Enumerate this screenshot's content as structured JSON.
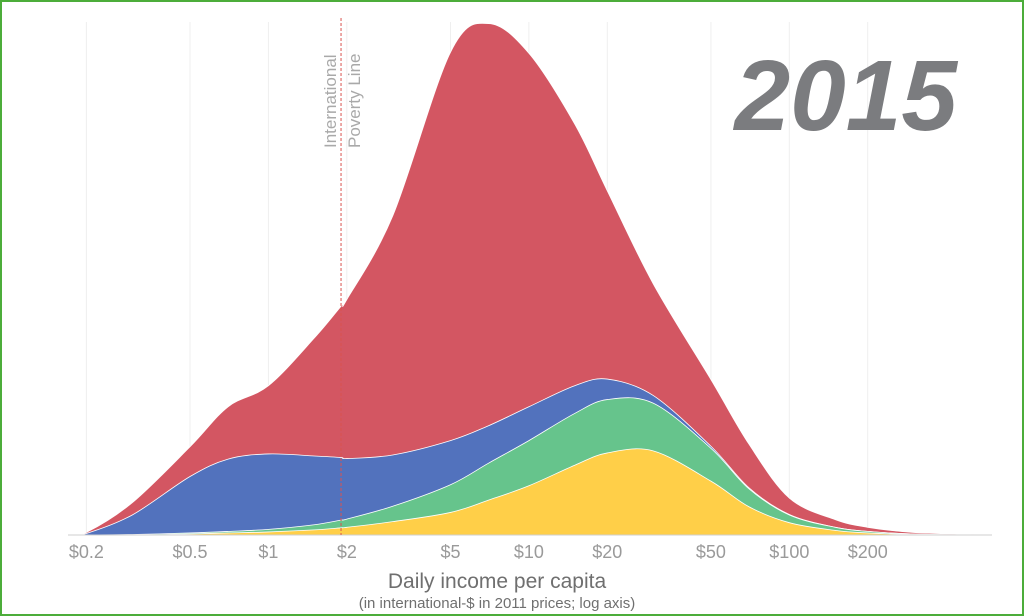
{
  "chart_data": {
    "type": "area",
    "stacked": true,
    "title": "2015",
    "xlabel": "Daily income per capita",
    "xsublabel": "(in international-$ in 2011 prices; log axis)",
    "xscale": "log",
    "xlim": [
      0.17,
      600
    ],
    "ylim": [
      0,
      100
    ],
    "x_ticks": [
      {
        "value": 0.2,
        "label": "$0.2"
      },
      {
        "value": 0.5,
        "label": "$0.5"
      },
      {
        "value": 1,
        "label": "$1"
      },
      {
        "value": 2,
        "label": "$2"
      },
      {
        "value": 5,
        "label": "$5"
      },
      {
        "value": 10,
        "label": "$10"
      },
      {
        "value": 20,
        "label": "$20"
      },
      {
        "value": 50,
        "label": "$50"
      },
      {
        "value": 100,
        "label": "$100"
      },
      {
        "value": 200,
        "label": "$200"
      }
    ],
    "grid": true,
    "legend": "none",
    "reference_line": {
      "value": 1.9,
      "label_lines": [
        "International",
        "Poverty Line"
      ],
      "color": "#d9534f"
    },
    "x": [
      0.17,
      0.2,
      0.3,
      0.5,
      0.7,
      1,
      1.5,
      1.9,
      2,
      3,
      5,
      7,
      10,
      15,
      20,
      30,
      50,
      70,
      100,
      150,
      200,
      300,
      600
    ],
    "series": [
      {
        "color": "#ffcf48",
        "values": [
          0,
          0,
          0,
          0.2,
          0.4,
          0.6,
          1.0,
          1.4,
          1.5,
          2.6,
          4.4,
          6.8,
          9.6,
          13.6,
          16.0,
          16.4,
          10.5,
          5.5,
          2.4,
          0.9,
          0.4,
          0.1,
          0
        ]
      },
      {
        "color": "#66c48c",
        "values": [
          0,
          0,
          0.1,
          0.2,
          0.3,
          0.5,
          1.0,
          1.5,
          1.6,
          3.0,
          5.4,
          7.2,
          8.8,
          10.1,
          10.4,
          9.3,
          6.4,
          3.5,
          1.5,
          0.6,
          0.3,
          0.1,
          0
        ]
      },
      {
        "color": "#5272bd",
        "values": [
          0,
          0.3,
          3.8,
          11.0,
          14.1,
          14.7,
          13.4,
          12.2,
          11.8,
          10.0,
          8.6,
          7.3,
          6.6,
          5.4,
          4.0,
          1.5,
          0.4,
          0.2,
          0.1,
          0,
          0,
          0,
          0
        ]
      },
      {
        "color": "#d35662",
        "values": [
          0,
          0.2,
          2.4,
          5.8,
          10.2,
          13.3,
          23.0,
          29.5,
          31.0,
          46.6,
          75.7,
          78.4,
          68.9,
          51.0,
          36.7,
          21.8,
          13.0,
          8.5,
          3.2,
          1.5,
          0.8,
          0.3,
          0
        ]
      }
    ]
  }
}
